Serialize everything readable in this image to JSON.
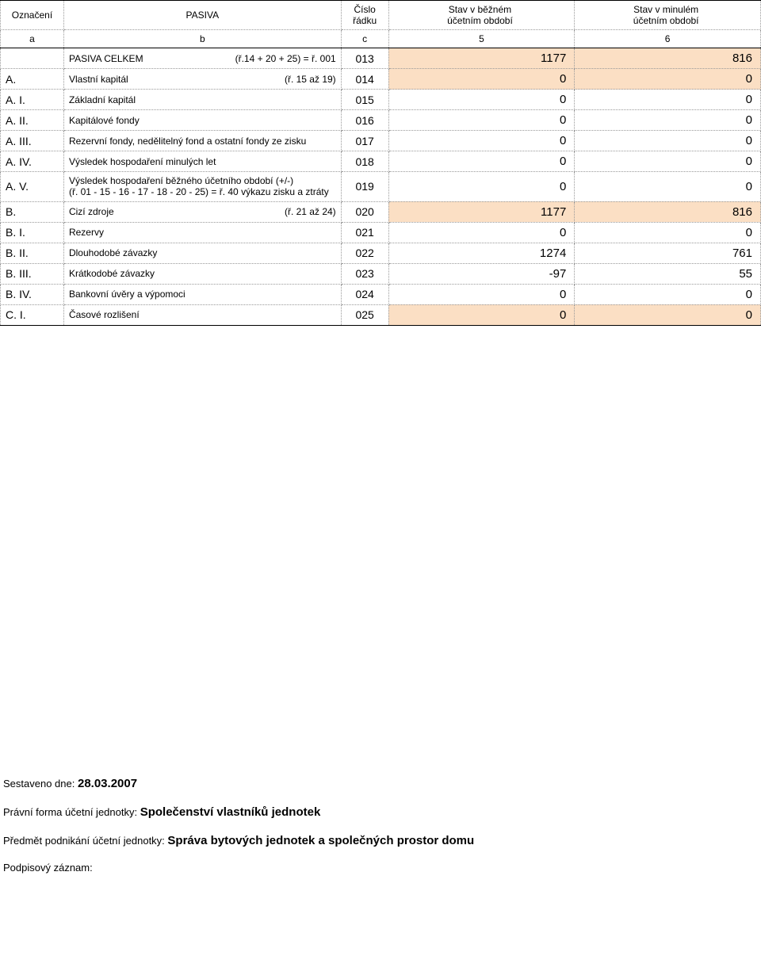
{
  "header": {
    "col_oznaceni": "Označení",
    "col_pasiva": "PASIVA",
    "col_cislo": "Číslo\nřádku",
    "col_current": "Stav v běžném\núčetním období",
    "col_prev": "Stav v minulém\núčetním období",
    "sub_a": "a",
    "sub_b": "b",
    "sub_c": "c",
    "sub_5": "5",
    "sub_6": "6"
  },
  "rows": [
    {
      "oz": "",
      "desc": "PASIVA CELKEM",
      "formula": "(ř.14 + 20 + 25) = ř. 001",
      "c": "013",
      "v": "1177",
      "p": "816",
      "hl": true
    },
    {
      "oz": "A.",
      "desc": "Vlastní kapitál",
      "formula": "(ř. 15 až 19)",
      "c": "014",
      "v": "0",
      "p": "0",
      "hl": true
    },
    {
      "oz": "A.  I.",
      "desc": "Základní kapitál",
      "formula": "",
      "c": "015",
      "v": "0",
      "p": "0",
      "hl": false
    },
    {
      "oz": "A.  II.",
      "desc": "Kapitálové fondy",
      "formula": "",
      "c": "016",
      "v": "0",
      "p": "0",
      "hl": false
    },
    {
      "oz": "A.  III.",
      "desc": "Rezervní fondy, nedělitelný fond a ostatní fondy ze zisku",
      "formula": "",
      "c": "017",
      "v": "0",
      "p": "0",
      "hl": false
    },
    {
      "oz": "A.  IV.",
      "desc": "Výsledek hospodaření minulých let",
      "formula": "",
      "c": "018",
      "v": "0",
      "p": "0",
      "hl": false
    },
    {
      "oz": "A.  V.",
      "desc": "Výsledek hospodaření běžného účetního období (+/-)\n(ř. 01 - 15 - 16 - 17 - 18 - 20 - 25) = ř. 40 výkazu zisku a ztráty",
      "formula": "",
      "c": "019",
      "v": "0",
      "p": "0",
      "hl": false,
      "multiline": true
    },
    {
      "oz": "B.",
      "desc": "Cizí zdroje",
      "formula": "(ř. 21 až 24)",
      "c": "020",
      "v": "1177",
      "p": "816",
      "hl": true
    },
    {
      "oz": "B.  I.",
      "desc": "Rezervy",
      "formula": "",
      "c": "021",
      "v": "0",
      "p": "0",
      "hl": false
    },
    {
      "oz": "B.  II.",
      "desc": "Dlouhodobé závazky",
      "formula": "",
      "c": "022",
      "v": "1274",
      "p": "761",
      "hl": false
    },
    {
      "oz": "B.  III.",
      "desc": "Krátkodobé závazky",
      "formula": "",
      "c": "023",
      "v": "-97",
      "p": "55",
      "hl": false
    },
    {
      "oz": "B.  IV.",
      "desc": "Bankovní úvěry a výpomoci",
      "formula": "",
      "c": "024",
      "v": "0",
      "p": "0",
      "hl": false
    },
    {
      "oz": "C.  I.",
      "desc": "Časové rozlišení",
      "formula": "",
      "c": "025",
      "v": "0",
      "p": "0",
      "hl": true
    }
  ],
  "footer": {
    "date_label": "Sestaveno dne:",
    "date_value": "28.03.2007",
    "form_label": "Právní forma účetní jednotky:",
    "form_value": "Společenství vlastníků jednotek",
    "subject_label": "Předmět podnikání účetní jednotky:",
    "subject_value": "Správa bytových jednotek a společných prostor domu",
    "sign_label": "Podpisový záznam:"
  },
  "style": {
    "highlight_color": "#fbdfc4",
    "border_color": "#999999",
    "font_family": "Arial"
  }
}
